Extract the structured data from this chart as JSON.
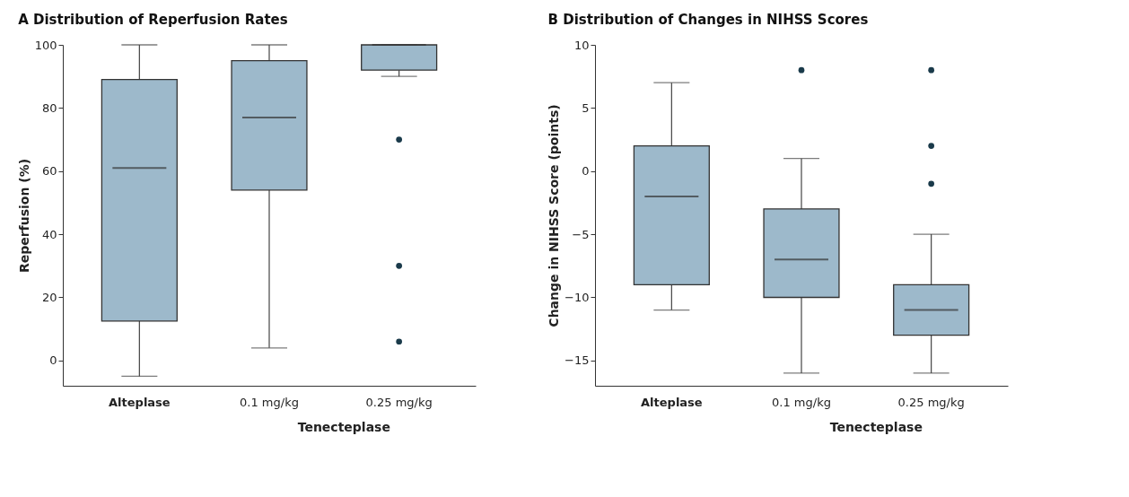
{
  "chart_data": [
    {
      "type": "box",
      "title": "A  Distribution of Reperfusion Rates",
      "ylabel": "Reperfusion (%)",
      "xlabel": "Tenecteplase",
      "categories": [
        "Alteplase",
        "0.1 mg/kg",
        "0.25 mg/kg"
      ],
      "series": [
        {
          "color": "#9db9cb",
          "boxes": [
            {
              "low": -5,
              "q1": 12.5,
              "median": 61,
              "q3": 89,
              "high": 100
            },
            {
              "low": 4,
              "q1": 54,
              "median": 77,
              "q3": 95,
              "high": 100
            },
            {
              "low": 90,
              "q1": 92,
              "median": 100,
              "q3": 100,
              "high": 100,
              "outliers": [
                70,
                30,
                6
              ]
            }
          ]
        }
      ],
      "ylim": [
        -8,
        100
      ],
      "yticks": [
        0,
        20,
        40,
        60,
        80,
        100
      ],
      "grid": false
    },
    {
      "type": "box",
      "title": "B  Distribution of Changes in NIHSS Scores",
      "ylabel": "Change in NIHSS Score (points)",
      "xlabel": "Tenecteplase",
      "categories": [
        "Alteplase",
        "0.1 mg/kg",
        "0.25 mg/kg"
      ],
      "series": [
        {
          "color": "#9db9cb",
          "boxes": [
            {
              "low": -11,
              "q1": -9,
              "median": -2,
              "q3": 2,
              "high": 7
            },
            {
              "low": -16,
              "q1": -10,
              "median": -7,
              "q3": -3,
              "high": 1,
              "outliers": [
                8
              ]
            },
            {
              "low": -16,
              "q1": -13,
              "median": -11,
              "q3": -9,
              "high": -5,
              "outliers": [
                8,
                2,
                -1
              ]
            }
          ]
        }
      ],
      "ylim": [
        -17,
        10
      ],
      "yticks": [
        10,
        5,
        0,
        -5,
        -10,
        -15
      ],
      "grid": false
    }
  ]
}
